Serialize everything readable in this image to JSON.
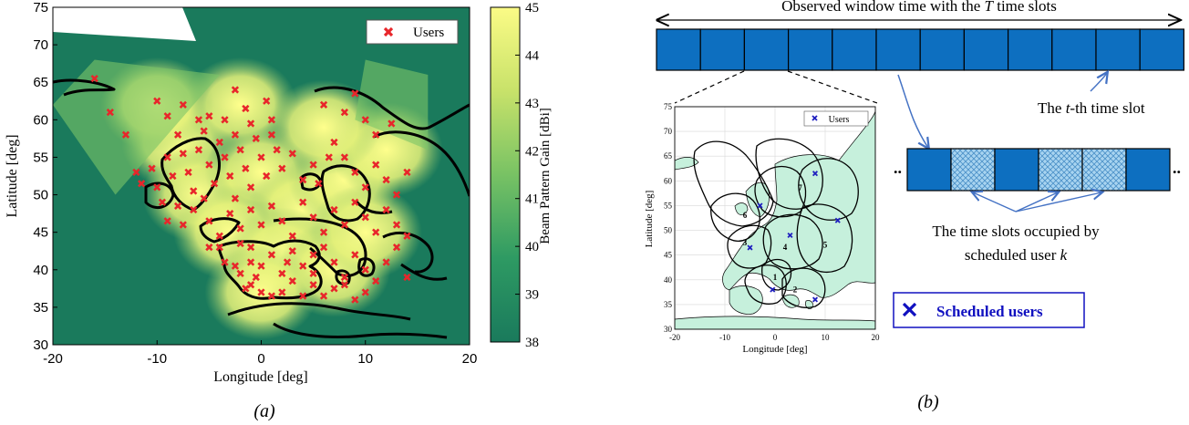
{
  "chart_data": [
    {
      "type": "heatmap",
      "panel_label": "(a)",
      "xlabel": "Longitude [deg]",
      "ylabel": "Latitude [deg]",
      "xlim": [
        -20,
        20
      ],
      "ylim": [
        30,
        75
      ],
      "xticks": [
        -20,
        -10,
        0,
        10,
        20
      ],
      "yticks": [
        30,
        35,
        40,
        45,
        50,
        55,
        60,
        65,
        70,
        75
      ],
      "colorbar": {
        "label": "Beam Pattern Gain [dBi]",
        "range": [
          38,
          45
        ],
        "ticks": [
          38,
          39,
          40,
          41,
          42,
          43,
          44,
          45
        ]
      },
      "legend": {
        "entries": [
          "Users"
        ],
        "placement": "top-right"
      },
      "series": [
        {
          "name": "Users",
          "marker": "x",
          "color": "#e8262b",
          "points": [
            [
              -16,
              65.5
            ],
            [
              -14.5,
              61
            ],
            [
              -13,
              58
            ],
            [
              -10,
              62.5
            ],
            [
              -7.5,
              62
            ],
            [
              -5,
              60.5
            ],
            [
              -2.5,
              64
            ],
            [
              -1.5,
              61.5
            ],
            [
              0.5,
              62.5
            ],
            [
              -9,
              60.5
            ],
            [
              -6,
              60
            ],
            [
              -3.5,
              60
            ],
            [
              -1,
              59.5
            ],
            [
              1,
              60
            ],
            [
              -12,
              53
            ],
            [
              -11.5,
              51.5
            ],
            [
              -10.5,
              53.5
            ],
            [
              -10,
              51
            ],
            [
              -9,
              55
            ],
            [
              -8.5,
              52.5
            ],
            [
              -8,
              58
            ],
            [
              -7.5,
              55.5
            ],
            [
              -7,
              53
            ],
            [
              -6.5,
              50.5
            ],
            [
              -6,
              56
            ],
            [
              -5.5,
              58.5
            ],
            [
              -5,
              54
            ],
            [
              -4.5,
              51.5
            ],
            [
              -4,
              57
            ],
            [
              -3.5,
              55
            ],
            [
              -3,
              52.5
            ],
            [
              -2.5,
              58
            ],
            [
              -2,
              56
            ],
            [
              -1.5,
              53.5
            ],
            [
              -1,
              51
            ],
            [
              -0.5,
              57.5
            ],
            [
              0,
              55
            ],
            [
              0.5,
              52.5
            ],
            [
              1,
              58
            ],
            [
              1.5,
              56
            ],
            [
              2,
              53.5
            ],
            [
              3,
              55.5
            ],
            [
              4,
              52
            ],
            [
              5,
              54
            ],
            [
              5.5,
              51.5
            ],
            [
              6.5,
              55
            ],
            [
              -5.5,
              49.5
            ],
            [
              -2.5,
              49.5
            ],
            [
              -9.5,
              49
            ],
            [
              -9,
              46.5
            ],
            [
              -8,
              48.5
            ],
            [
              -7.5,
              46
            ],
            [
              -6.5,
              48
            ],
            [
              -5,
              46.5
            ],
            [
              -4,
              44.5
            ],
            [
              -3,
              47.5
            ],
            [
              -2,
              45.5
            ],
            [
              -1,
              48
            ],
            [
              0,
              46
            ],
            [
              1,
              48.5
            ],
            [
              2,
              46.5
            ],
            [
              3,
              44.5
            ],
            [
              4,
              49
            ],
            [
              5,
              47
            ],
            [
              6,
              45
            ],
            [
              7,
              48
            ],
            [
              8,
              46
            ],
            [
              9,
              49
            ],
            [
              10,
              47
            ],
            [
              11,
              45
            ],
            [
              12,
              48
            ],
            [
              13,
              46
            ],
            [
              14,
              44.5
            ],
            [
              -5,
              43
            ],
            [
              -4,
              43
            ],
            [
              -2,
              43.5
            ],
            [
              -1,
              43
            ],
            [
              7,
              57
            ],
            [
              8,
              55
            ],
            [
              9,
              53
            ],
            [
              10,
              51
            ],
            [
              11,
              54
            ],
            [
              12,
              52
            ],
            [
              13,
              50
            ],
            [
              14,
              53
            ],
            [
              11,
              58
            ],
            [
              12.5,
              59.5
            ],
            [
              10,
              60
            ],
            [
              8,
              61
            ],
            [
              9,
              63.5
            ],
            [
              6,
              62
            ],
            [
              -1,
              41
            ],
            [
              0,
              40.5
            ],
            [
              1,
              42
            ],
            [
              2,
              39.5
            ],
            [
              3,
              42.5
            ],
            [
              4,
              40.5
            ],
            [
              5,
              42
            ],
            [
              6,
              43
            ],
            [
              7,
              41
            ],
            [
              8,
              39
            ],
            [
              9,
              42
            ],
            [
              10,
              40
            ],
            [
              11,
              38.5
            ],
            [
              12,
              41
            ],
            [
              13,
              43
            ],
            [
              14,
              39
            ],
            [
              -2,
              39.5
            ],
            [
              -1,
              38
            ],
            [
              0,
              37
            ],
            [
              1,
              36.5
            ],
            [
              2,
              37
            ],
            [
              3,
              38.5
            ],
            [
              4,
              36.5
            ],
            [
              5,
              38
            ],
            [
              6,
              36.5
            ],
            [
              7,
              37.5
            ],
            [
              8,
              38
            ],
            [
              9,
              36
            ],
            [
              10,
              37
            ],
            [
              -3.5,
              41
            ],
            [
              -2.5,
              40.5
            ],
            [
              -0.5,
              39
            ],
            [
              -1.5,
              37.5
            ],
            [
              2.5,
              41
            ],
            [
              5,
              39.5
            ]
          ]
        }
      ]
    },
    {
      "type": "scatter",
      "panel_label": "(b)",
      "xlabel": "Longitude [deg]",
      "ylabel": "Latitude [deg]",
      "xlim": [
        -20,
        20
      ],
      "ylim": [
        30,
        75
      ],
      "xticks": [
        -20,
        -10,
        0,
        10,
        20
      ],
      "yticks": [
        30,
        35,
        40,
        45,
        50,
        55,
        60,
        65,
        70,
        75
      ],
      "legend": {
        "entries": [
          "Users"
        ],
        "placement": "top-right"
      },
      "beam_labels": [
        "1",
        "2",
        "3",
        "4",
        "5",
        "6",
        "7"
      ],
      "series": [
        {
          "name": "Users",
          "marker": "x",
          "color": "#1f1fbf",
          "points": [
            [
              -3,
              55
            ],
            [
              8,
              61.5
            ],
            [
              12.5,
              52
            ],
            [
              -5,
              46.5
            ],
            [
              3,
              49
            ],
            [
              -0.5,
              38
            ],
            [
              8,
              36
            ]
          ]
        }
      ]
    }
  ],
  "diagram": {
    "window_caption_prefix": "Observed window time with the ",
    "window_caption_var": "T",
    "window_caption_suffix": " time slots",
    "slot_count": 12,
    "tth_prefix": "The ",
    "tth_var": "t",
    "tth_suffix": "-th time slot",
    "occupied_line1": "The time slots occupied by",
    "occupied_line2_prefix": "scheduled user ",
    "occupied_line2_var": "k",
    "scheduled_users_label": "Scheduled users",
    "detail_slots_pattern": [
      "solid",
      "hatched",
      "solid",
      "hatched",
      "hatched",
      "solid"
    ],
    "ellipsis": "..",
    "colors": {
      "slot_fill": "#0d6fc0",
      "slot_stroke": "#000000",
      "hatch": "#a8d4f0",
      "arrow": "#4472c4",
      "legend_text": "#1010c0",
      "map_land": "#c6f0dc"
    }
  }
}
